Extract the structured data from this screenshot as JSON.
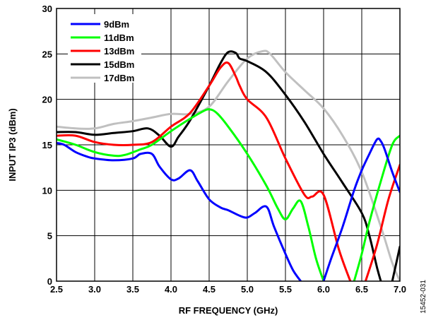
{
  "chart_data": {
    "type": "line",
    "title": "",
    "xlabel": "RF FREQUENCY (GHz)",
    "ylabel": "INPUT IP3 (dBm)",
    "xlim": [
      2.5,
      7.0
    ],
    "ylim": [
      0,
      30
    ],
    "xticks": [
      "2.5",
      "3.0",
      "3.5",
      "4.0",
      "4.5",
      "5.0",
      "5.5",
      "6.0",
      "6.5",
      "7.0"
    ],
    "xtick_values": [
      2.5,
      3.0,
      3.5,
      4.0,
      4.5,
      5.0,
      5.5,
      6.0,
      6.5,
      7.0
    ],
    "yticks": [
      "0",
      "5",
      "10",
      "15",
      "20",
      "25",
      "30"
    ],
    "ytick_values": [
      0,
      5,
      10,
      15,
      20,
      25,
      30
    ],
    "grid": true,
    "legend_position": "top-left",
    "series": [
      {
        "name": "9dBm",
        "color": "#0000ff",
        "x": [
          2.5,
          2.6,
          2.75,
          2.9,
          3.0,
          3.25,
          3.5,
          3.6,
          3.75,
          3.85,
          4.0,
          4.1,
          4.25,
          4.35,
          4.5,
          4.65,
          4.75,
          4.9,
          5.0,
          5.1,
          5.25,
          5.35,
          5.5,
          5.6,
          5.7
        ],
        "y": [
          15.2,
          15.0,
          14.2,
          13.7,
          13.5,
          13.3,
          13.5,
          14.0,
          14.0,
          12.6,
          11.2,
          11.3,
          12.2,
          11.0,
          9.0,
          8.1,
          7.8,
          7.2,
          7.0,
          7.5,
          8.2,
          6.0,
          3.0,
          1.2,
          0.0
        ],
        "x2": [
          6.0,
          6.1,
          6.25,
          6.4,
          6.5,
          6.6,
          6.7,
          6.75,
          6.8,
          6.9,
          7.0
        ],
        "y2": [
          0.0,
          2.5,
          6.0,
          10.0,
          12.2,
          14.0,
          15.6,
          15.4,
          14.5,
          12.0,
          9.8
        ]
      },
      {
        "name": "11dBm",
        "color": "#00ff00",
        "x": [
          2.5,
          2.75,
          3.0,
          3.25,
          3.4,
          3.6,
          3.75,
          4.0,
          4.2,
          4.4,
          4.5,
          4.6,
          4.75,
          5.0,
          5.25,
          5.4,
          5.5,
          5.6,
          5.7,
          5.8,
          5.9,
          6.0
        ],
        "y": [
          15.6,
          15.0,
          14.2,
          13.8,
          13.9,
          14.5,
          15.0,
          16.5,
          17.6,
          18.6,
          18.9,
          18.5,
          17.0,
          14.0,
          10.5,
          8.0,
          6.8,
          8.0,
          8.8,
          6.0,
          2.5,
          0.0
        ],
        "x2": [
          6.4,
          6.5,
          6.6,
          6.75,
          6.9,
          7.0
        ],
        "y2": [
          0.0,
          3.0,
          6.5,
          11.0,
          15.0,
          16.0
        ]
      },
      {
        "name": "13dBm",
        "color": "#ff0000",
        "x": [
          2.5,
          2.75,
          3.0,
          3.25,
          3.5,
          3.75,
          4.0,
          4.25,
          4.5,
          4.65,
          4.75,
          4.85,
          4.9,
          5.0,
          5.25,
          5.5,
          5.75,
          5.85,
          6.0,
          6.2,
          6.35
        ],
        "y": [
          16.0,
          16.0,
          15.3,
          15.0,
          15.0,
          15.3,
          17.0,
          18.5,
          21.5,
          23.5,
          24.0,
          22.5,
          21.5,
          20.0,
          18.0,
          13.5,
          9.5,
          9.3,
          9.5,
          3.5,
          0.0
        ],
        "x2": [
          6.55,
          6.7,
          6.85,
          7.0
        ],
        "y2": [
          0.0,
          4.0,
          9.0,
          12.8
        ]
      },
      {
        "name": "15dBm",
        "color": "#000000",
        "x": [
          2.5,
          2.75,
          3.0,
          3.25,
          3.5,
          3.7,
          3.85,
          4.0,
          4.1,
          4.25,
          4.5,
          4.65,
          4.75,
          4.85,
          4.9,
          5.0,
          5.25,
          5.5,
          5.75,
          6.0,
          6.25,
          6.5,
          6.6,
          6.7,
          6.75
        ],
        "y": [
          16.4,
          16.4,
          16.1,
          16.3,
          16.5,
          16.8,
          16.0,
          14.8,
          15.9,
          17.7,
          21.5,
          24.0,
          25.2,
          25.1,
          24.5,
          24.2,
          23.0,
          20.5,
          17.5,
          14.0,
          10.8,
          7.5,
          5.0,
          1.5,
          0.0
        ],
        "x2": [
          6.9,
          7.0
        ],
        "y2": [
          0.0,
          3.8
        ]
      },
      {
        "name": "17dBm",
        "color": "#c0c0c0",
        "x": [
          2.5,
          2.75,
          3.0,
          3.25,
          3.5,
          3.75,
          4.0,
          4.25,
          4.5,
          4.75,
          5.0,
          5.2,
          5.3,
          5.5,
          5.75,
          6.0,
          6.25,
          6.5,
          6.75,
          6.9,
          7.0
        ],
        "y": [
          17.0,
          16.8,
          16.8,
          17.3,
          17.6,
          18.0,
          18.4,
          18.4,
          19.2,
          22.0,
          24.5,
          25.3,
          25.0,
          23.0,
          21.0,
          19.0,
          16.0,
          12.0,
          6.0,
          2.0,
          0.0
        ]
      }
    ]
  },
  "figure_id": "15452-031"
}
